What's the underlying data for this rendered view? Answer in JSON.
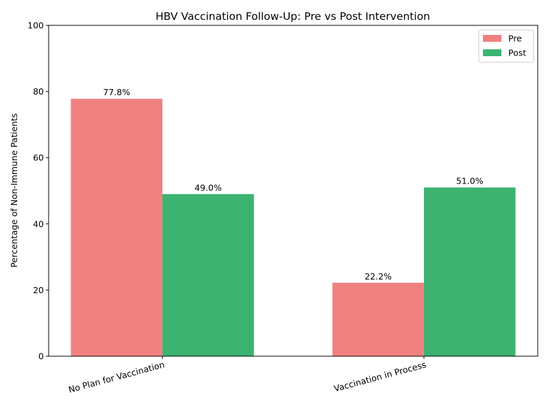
{
  "chart_data": {
    "type": "bar",
    "title": "HBV Vaccination Follow-Up: Pre vs Post Intervention",
    "xlabel": "",
    "ylabel": "Percentage of Non-Immune Patients",
    "categories": [
      "No Plan for Vaccination",
      "Vaccination in Process"
    ],
    "series": [
      {
        "name": "Pre",
        "values": [
          77.8,
          22.2
        ],
        "labels": [
          "77.8%",
          "22.2%"
        ],
        "color": "#f08080"
      },
      {
        "name": "Post",
        "values": [
          49.0,
          51.0
        ],
        "labels": [
          "49.0%",
          "51.0%"
        ],
        "color": "#3cb371"
      }
    ],
    "ylim": [
      0,
      100
    ],
    "yticks": [
      0,
      20,
      40,
      60,
      80,
      100
    ],
    "grid": false,
    "legend_position": "top-right"
  }
}
